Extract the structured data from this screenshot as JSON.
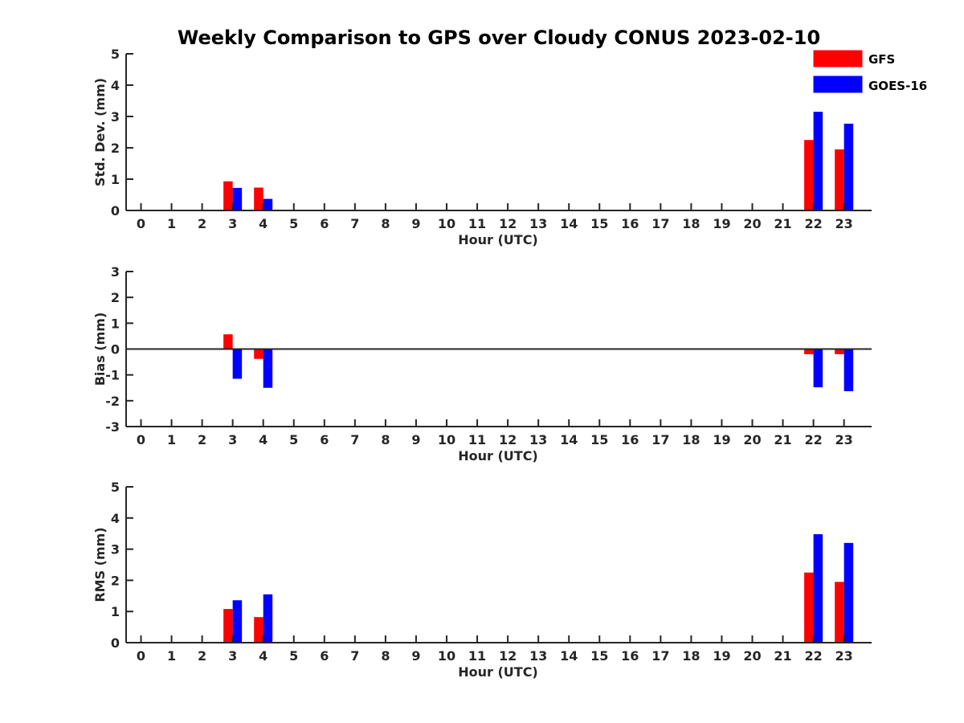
{
  "figure": {
    "title": "Weekly Comparison to GPS over Cloudy CONUS 2023-02-10",
    "legend": {
      "placement": "top-right",
      "entries": [
        {
          "name": "GFS",
          "color": "#ff0000"
        },
        {
          "name": "GOES-16",
          "color": "#0000ff"
        }
      ]
    }
  },
  "chart_data": [
    {
      "type": "bar",
      "xlabel": "Hour (UTC)",
      "ylabel": "Std. Dev. (mm)",
      "ylim": [
        0,
        5
      ],
      "yticks": [
        "0",
        "1",
        "2",
        "3",
        "4",
        "5"
      ],
      "categories": [
        "0",
        "1",
        "2",
        "3",
        "4",
        "5",
        "6",
        "7",
        "8",
        "9",
        "10",
        "11",
        "12",
        "13",
        "14",
        "15",
        "16",
        "17",
        "18",
        "19",
        "20",
        "21",
        "22",
        "23"
      ],
      "series": [
        {
          "name": "GFS",
          "color": "#ff0000",
          "values": [
            null,
            null,
            null,
            0.93,
            0.73,
            null,
            null,
            null,
            null,
            null,
            null,
            null,
            null,
            null,
            null,
            null,
            null,
            null,
            null,
            null,
            null,
            null,
            2.25,
            1.95
          ]
        },
        {
          "name": "GOES-16",
          "color": "#0000ff",
          "values": [
            null,
            null,
            null,
            0.72,
            0.37,
            null,
            null,
            null,
            null,
            null,
            null,
            null,
            null,
            null,
            null,
            null,
            null,
            null,
            null,
            null,
            null,
            null,
            3.15,
            2.77
          ]
        }
      ]
    },
    {
      "type": "bar",
      "xlabel": "Hour (UTC)",
      "ylabel": "Bias (mm)",
      "ylim": [
        -3,
        3
      ],
      "yticks": [
        "-3",
        "-2",
        "-1",
        "0",
        "1",
        "2",
        "3"
      ],
      "zero_line": true,
      "categories": [
        "0",
        "1",
        "2",
        "3",
        "4",
        "5",
        "6",
        "7",
        "8",
        "9",
        "10",
        "11",
        "12",
        "13",
        "14",
        "15",
        "16",
        "17",
        "18",
        "19",
        "20",
        "21",
        "22",
        "23"
      ],
      "series": [
        {
          "name": "GFS",
          "color": "#ff0000",
          "values": [
            null,
            null,
            null,
            0.57,
            -0.38,
            null,
            null,
            null,
            null,
            null,
            null,
            null,
            null,
            null,
            null,
            null,
            null,
            null,
            null,
            null,
            null,
            null,
            -0.2,
            -0.2
          ]
        },
        {
          "name": "GOES-16",
          "color": "#0000ff",
          "values": [
            null,
            null,
            null,
            -1.15,
            -1.5,
            null,
            null,
            null,
            null,
            null,
            null,
            null,
            null,
            null,
            null,
            null,
            null,
            null,
            null,
            null,
            null,
            null,
            -1.48,
            -1.63
          ]
        }
      ]
    },
    {
      "type": "bar",
      "xlabel": "Hour (UTC)",
      "ylabel": "RMS (mm)",
      "ylim": [
        0,
        5
      ],
      "yticks": [
        "0",
        "1",
        "2",
        "3",
        "4",
        "5"
      ],
      "categories": [
        "0",
        "1",
        "2",
        "3",
        "4",
        "5",
        "6",
        "7",
        "8",
        "9",
        "10",
        "11",
        "12",
        "13",
        "14",
        "15",
        "16",
        "17",
        "18",
        "19",
        "20",
        "21",
        "22",
        "23"
      ],
      "series": [
        {
          "name": "GFS",
          "color": "#ff0000",
          "values": [
            null,
            null,
            null,
            1.08,
            0.82,
            null,
            null,
            null,
            null,
            null,
            null,
            null,
            null,
            null,
            null,
            null,
            null,
            null,
            null,
            null,
            null,
            null,
            2.25,
            1.95
          ]
        },
        {
          "name": "GOES-16",
          "color": "#0000ff",
          "values": [
            null,
            null,
            null,
            1.36,
            1.55,
            null,
            null,
            null,
            null,
            null,
            null,
            null,
            null,
            null,
            null,
            null,
            null,
            null,
            null,
            null,
            null,
            null,
            3.48,
            3.2
          ]
        }
      ]
    }
  ]
}
